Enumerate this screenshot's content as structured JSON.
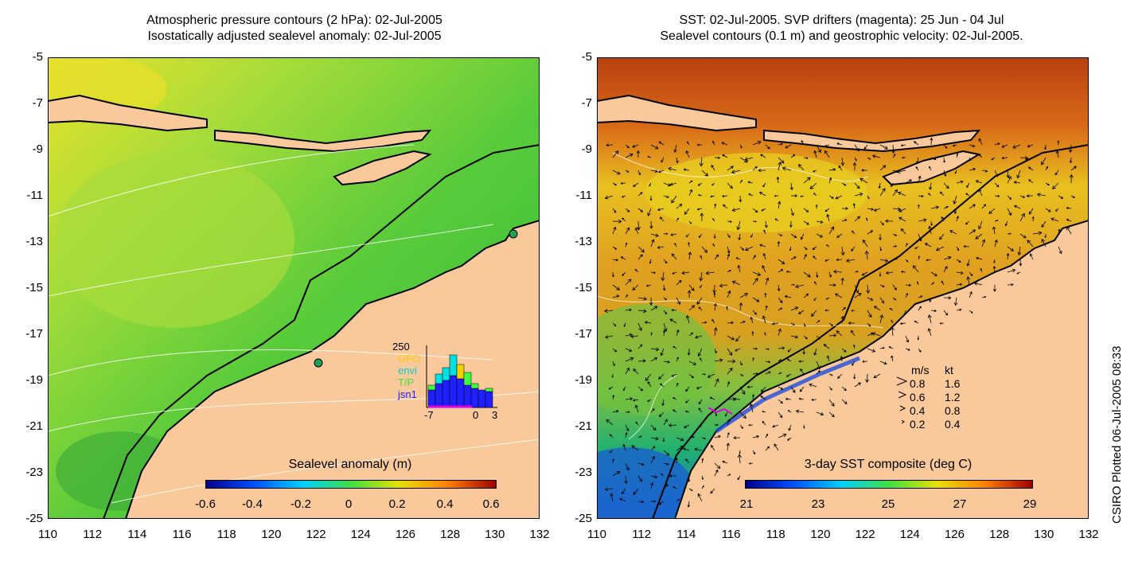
{
  "left_panel": {
    "title_lines": [
      "Atmospheric pressure contours (2 hPa): 02-Jul-2005",
      "Isostatically adjusted sealevel anomaly: 02-Jul-2005"
    ],
    "colorbar_title": "Sealevel anomaly (m)",
    "colorbar_ticks": [
      "-0.6",
      "-0.4",
      "-0.2",
      "0",
      "0.2",
      "0.4",
      "0.6"
    ],
    "inset": {
      "ymax_label": "250",
      "legend": [
        "GFO",
        "envi",
        "T/P",
        "jsn1"
      ],
      "legend_colors": [
        "#f0d000",
        "#00e0e0",
        "#40ff40",
        "#2020ff"
      ],
      "x_ticks": [
        "-7",
        "0",
        "3"
      ]
    }
  },
  "right_panel": {
    "title_lines": [
      "SST: 02-Jul-2005. SVP drifters (magenta): 25 Jun - 04 Jul",
      "Sealevel contours (0.1 m) and geostrophic velocity: 02-Jul-2005."
    ],
    "colorbar_title": "3-day SST composite (deg C)",
    "colorbar_ticks": [
      "21",
      "23",
      "25",
      "27",
      "29"
    ],
    "speed_legend": {
      "header_ms": "m/s",
      "header_kt": "kt",
      "rows": [
        [
          "0.8",
          "1.6"
        ],
        [
          "0.6",
          "1.2"
        ],
        [
          "0.4",
          "0.8"
        ],
        [
          "0.2",
          "0.4"
        ]
      ]
    }
  },
  "axes": {
    "y_ticks": [
      "-5",
      "-7",
      "-9",
      "-11",
      "-13",
      "-15",
      "-17",
      "-19",
      "-21",
      "-23",
      "-25"
    ],
    "x_ticks": [
      "110",
      "112",
      "114",
      "116",
      "118",
      "120",
      "122",
      "124",
      "126",
      "128",
      "130",
      "132"
    ]
  },
  "side_label": "CSIRO Plotted 06-Jul-2005 08:33",
  "colors": {
    "land": "#f9c99b",
    "ocean_left": "#3fc43a",
    "ocean_right_warm": "#e07818",
    "ocean_right_cool": "#2090e0"
  }
}
